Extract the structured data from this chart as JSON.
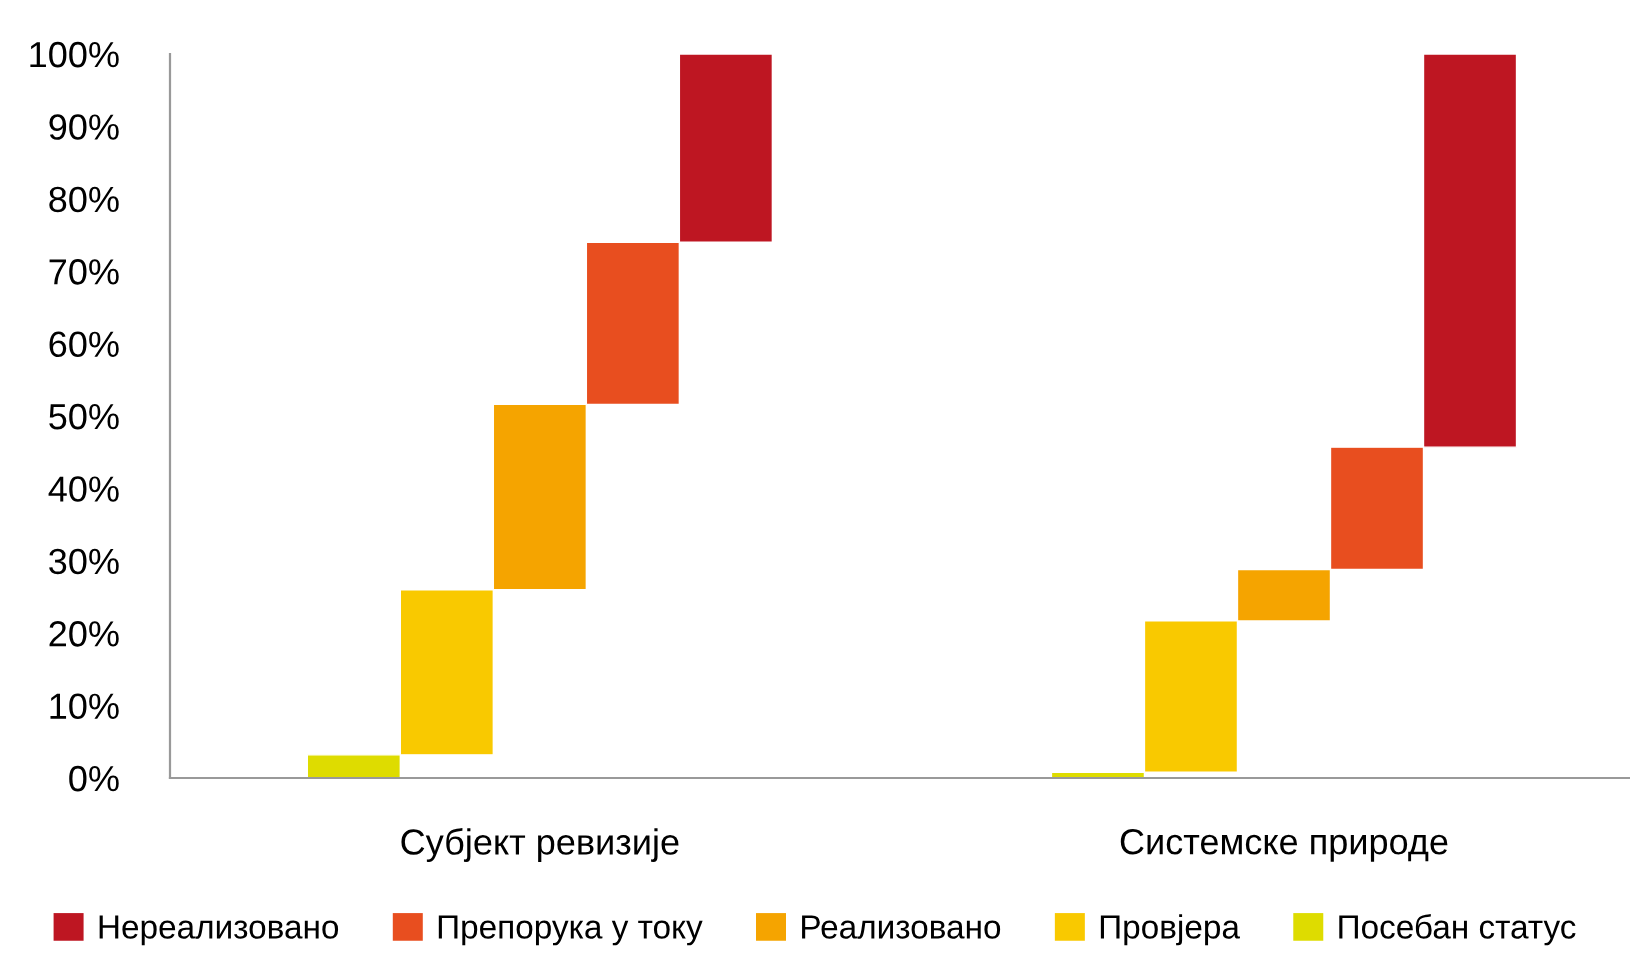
{
  "chart_data": {
    "type": "bar",
    "categories": [
      "Субјект ревизије",
      "Системске природе"
    ],
    "series": [
      {
        "name": "Нереализовано",
        "color": "#be1622",
        "values": [
          26.0,
          54.3
        ],
        "base": [
          74.0,
          45.7
        ]
      },
      {
        "name": "Препорука у току",
        "color": "#e84e1f",
        "values": [
          22.4,
          16.9
        ],
        "base": [
          51.6,
          28.8
        ]
      },
      {
        "name": "Реализовано",
        "color": "#f5a400",
        "values": [
          25.6,
          7.1
        ],
        "base": [
          26.0,
          21.7
        ]
      },
      {
        "name": "Провјера",
        "color": "#f9c900",
        "values": [
          22.8,
          20.9
        ],
        "base": [
          3.2,
          0.8
        ]
      },
      {
        "name": "Посебан статус",
        "color": "#dedc00",
        "values": [
          3.2,
          0.8
        ],
        "base": [
          0,
          0
        ]
      }
    ],
    "ylim": [
      0,
      100
    ],
    "yticks": [
      {
        "value": 0,
        "label": "0%"
      },
      {
        "value": 10,
        "label": "10%"
      },
      {
        "value": 20,
        "label": "20%"
      },
      {
        "value": 30,
        "label": "30%"
      },
      {
        "value": 40,
        "label": "40%"
      },
      {
        "value": 50,
        "label": "50%"
      },
      {
        "value": 60,
        "label": "60%"
      },
      {
        "value": 70,
        "label": "70%"
      },
      {
        "value": 80,
        "label": "80%"
      },
      {
        "value": 90,
        "label": "90%"
      },
      {
        "value": 100,
        "label": "100%"
      }
    ],
    "grid": false,
    "legend": "bottom"
  }
}
